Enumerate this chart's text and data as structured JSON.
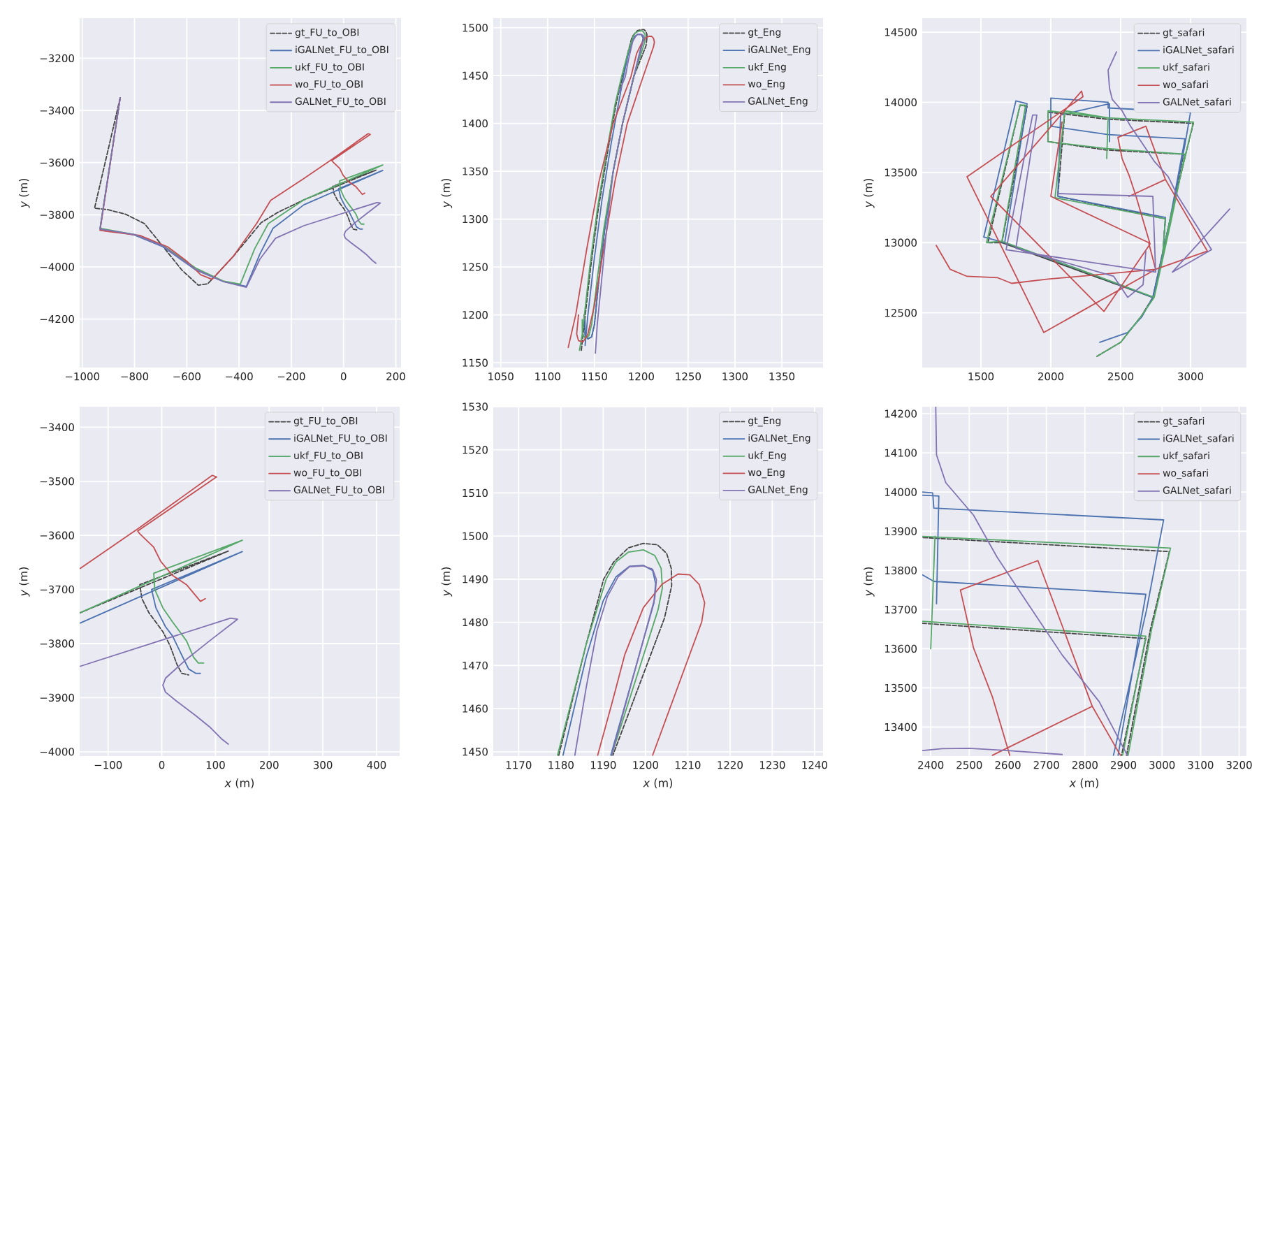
{
  "chart_data": [
    {
      "type": "line",
      "ylabel": "*y* (m)",
      "xlim": [
        -1010,
        220
      ],
      "ylim": [
        -4386,
        -3046
      ],
      "xticks": [
        {
          "value": -1000,
          "label": "−1000"
        },
        {
          "value": -800,
          "label": "−800"
        },
        {
          "value": -600,
          "label": "−600"
        },
        {
          "value": -400,
          "label": "−400"
        },
        {
          "value": -200,
          "label": "−200"
        },
        0,
        200
      ],
      "yticks": [
        {
          "value": -4200,
          "label": "−4200"
        },
        {
          "value": -4000,
          "label": "−4000"
        },
        {
          "value": -3800,
          "label": "−3800"
        },
        {
          "value": -3600,
          "label": "−3600"
        },
        {
          "value": -3400,
          "label": "−3400"
        },
        {
          "value": -3200,
          "label": "−3200"
        }
      ],
      "grid": true,
      "legend": "top right",
      "series": [
        {
          "name": "gt_FU_to_OBI",
          "color": "#444444",
          "line_style": "dashed",
          "x": [
            -855,
            -953,
            -905,
            -834,
            -762,
            -690,
            -619,
            -556,
            -520,
            -422,
            -315,
            -250,
            -152,
            124,
            -41,
            -37,
            -24,
            2,
            15,
            28,
            37,
            50
          ],
          "values": [
            -3352,
            -3775,
            -3780,
            -3798,
            -3834,
            -3923,
            -4012,
            -4070,
            -4065,
            -3960,
            -3830,
            -3790,
            -3743,
            -3629,
            -3691,
            -3717,
            -3743,
            -3778,
            -3803,
            -3838,
            -3855,
            -3858
          ]
        },
        {
          "name": "iGALNet_FU_to_OBI",
          "color": "#4c72b0",
          "line_style": "solid",
          "x": [
            -855,
            -932,
            -900,
            -800,
            -691,
            -565,
            -458,
            -372,
            -320,
            -270,
            -152,
            150,
            -19,
            -15,
            -11,
            7,
            20,
            37,
            50,
            63,
            72
          ],
          "values": [
            -3352,
            -3855,
            -3860,
            -3878,
            -3923,
            -4012,
            -4057,
            -4075,
            -3950,
            -3852,
            -3762,
            -3630,
            -3700,
            -3717,
            -3734,
            -3769,
            -3786,
            -3821,
            -3847,
            -3855,
            -3855
          ]
        },
        {
          "name": "ukf_FU_to_OBI",
          "color": "#55a868",
          "line_style": "solid",
          "x": [
            -855,
            -932,
            -900,
            -800,
            -691,
            -565,
            -458,
            -395,
            -340,
            -288,
            -152,
            150,
            -15,
            -13,
            2,
            20,
            46,
            59,
            68,
            78
          ],
          "values": [
            -3352,
            -3852,
            -3858,
            -3876,
            -3918,
            -4005,
            -4055,
            -4066,
            -3930,
            -3834,
            -3743,
            -3609,
            -3670,
            -3700,
            -3734,
            -3760,
            -3795,
            -3825,
            -3836,
            -3836
          ]
        },
        {
          "name": "wo_FU_to_OBI",
          "color": "#c44e52",
          "line_style": "solid",
          "x": [
            -855,
            -932,
            -905,
            -780,
            -673,
            -601,
            -547,
            -503,
            -422,
            -333,
            -279,
            -152,
            -45,
            94,
            102,
            -45,
            -41,
            -15,
            -2,
            20,
            46,
            72,
            81
          ],
          "values": [
            -3352,
            -3860,
            -3864,
            -3879,
            -3923,
            -3977,
            -4030,
            -4048,
            -3959,
            -3834,
            -3745,
            -3661,
            -3588,
            -3489,
            -3492,
            -3592,
            -3597,
            -3622,
            -3648,
            -3674,
            -3691,
            -3722,
            -3717
          ]
        },
        {
          "name": "GALNet_FU_to_OBI",
          "color": "#8172b2",
          "line_style": "solid",
          "x": [
            -855,
            -932,
            -900,
            -800,
            -691,
            -565,
            -458,
            -372,
            -320,
            -260,
            -152,
            128,
            141,
            89,
            46,
            7,
            2,
            7,
            28,
            63,
            89,
            111,
            124
          ],
          "values": [
            -3352,
            -3855,
            -3860,
            -3876,
            -3920,
            -4010,
            -4057,
            -4078,
            -3970,
            -3890,
            -3842,
            -3753,
            -3755,
            -3795,
            -3829,
            -3864,
            -3877,
            -3890,
            -3907,
            -3933,
            -3954,
            -3976,
            -3986
          ]
        }
      ]
    },
    {
      "type": "line",
      "ylabel": "*y* (m)",
      "xlim": [
        1042,
        1394
      ],
      "ylim": [
        1145,
        1510
      ],
      "xticks": [
        1050,
        1100,
        1150,
        1200,
        1250,
        1300,
        1350
      ],
      "yticks": [
        1150,
        1200,
        1250,
        1300,
        1350,
        1400,
        1450,
        1500
      ],
      "grid": true,
      "legend": "top right",
      "series": [
        {
          "name": "gt_Eng",
          "color": "#444444",
          "line_style": "dashed",
          "x": [
            1136,
            1139,
            1146,
            1154,
            1164,
            1173,
            1180,
            1186,
            1190,
            1193,
            1196,
            1200,
            1203,
            1205,
            1206,
            1206,
            1205,
            1192,
            1180,
            1170,
            1161,
            1154,
            1150,
            1147,
            1143,
            1140,
            1139
          ],
          "values": [
            1163,
            1190,
            1250,
            1310,
            1370,
            1420,
            1449,
            1475,
            1490,
            1494,
            1497,
            1498,
            1498,
            1496,
            1493,
            1489,
            1481,
            1449,
            1400,
            1350,
            1290,
            1230,
            1190,
            1177,
            1175,
            1180,
            1200
          ]
        },
        {
          "name": "iGALNet_Eng",
          "color": "#4c72b0",
          "line_style": "solid",
          "x": [
            1140,
            1143,
            1150,
            1158,
            1168,
            1181,
            1186,
            1190,
            1193,
            1196,
            1200,
            1202,
            1192,
            1180,
            1170,
            1161,
            1154,
            1150,
            1147,
            1143,
            1140,
            1140
          ],
          "values": [
            1168,
            1200,
            1260,
            1320,
            1380,
            1449,
            1472,
            1485,
            1491,
            1493,
            1493,
            1489,
            1449,
            1400,
            1350,
            1290,
            1230,
            1190,
            1177,
            1175,
            1178,
            1195
          ]
        },
        {
          "name": "ukf_Eng",
          "color": "#55a868",
          "line_style": "solid",
          "x": [
            1134,
            1137,
            1145,
            1153,
            1163,
            1172,
            1179,
            1186,
            1191,
            1193,
            1196,
            1200,
            1202,
            1204,
            1204,
            1203,
            1192,
            1180,
            1170,
            1160,
            1152,
            1147,
            1144,
            1140,
            1137,
            1137
          ],
          "values": [
            1163,
            1180,
            1250,
            1310,
            1370,
            1420,
            1449,
            1475,
            1490,
            1494,
            1496,
            1497,
            1496,
            1493,
            1488,
            1483,
            1449,
            1400,
            1350,
            1290,
            1230,
            1190,
            1178,
            1176,
            1180,
            1195
          ]
        },
        {
          "name": "wo_Eng",
          "color": "#c44e52",
          "line_style": "solid",
          "x": [
            1122,
            1130,
            1142,
            1155,
            1170,
            1189,
            1192,
            1195,
            1200,
            1204,
            1208,
            1211,
            1213,
            1214,
            1213,
            1202,
            1185,
            1172,
            1160,
            1150,
            1143,
            1138,
            1133,
            1131,
            1133
          ],
          "values": [
            1166,
            1200,
            1270,
            1340,
            1400,
            1449,
            1461,
            1473,
            1483,
            1489,
            1491,
            1491,
            1489,
            1485,
            1480,
            1449,
            1400,
            1340,
            1270,
            1210,
            1180,
            1172,
            1173,
            1180,
            1200
          ]
        },
        {
          "name": "GALNet_Eng",
          "color": "#8172b2",
          "line_style": "solid",
          "x": [
            1176,
            1183,
            1186,
            1189,
            1191,
            1194,
            1196,
            1200,
            1202,
            1203,
            1202,
            1192,
            1180,
            1170,
            1163,
            1157,
            1153,
            1151
          ],
          "values": [
            1432,
            1449,
            1465,
            1478,
            1486,
            1491,
            1493,
            1493,
            1492,
            1490,
            1486,
            1449,
            1400,
            1350,
            1290,
            1230,
            1190,
            1160
          ]
        }
      ]
    },
    {
      "type": "line",
      "ylabel": "*y* (m)",
      "xlim": [
        1080,
        3400
      ],
      "ylim": [
        12110,
        14600
      ],
      "xticks": [
        1500,
        2000,
        2500,
        3000
      ],
      "yticks": [
        12500,
        13000,
        13500,
        14000,
        14500
      ],
      "grid": true,
      "legend": "top right",
      "series": [
        {
          "name": "gt_safari",
          "color": "#444444",
          "line_style": "dashed",
          "x": [
            2330,
            2500,
            2650,
            2730,
            2850,
            2970,
            3020,
            2400,
            1980,
            1980,
            2400,
            2950,
            2850,
            2730,
            2200,
            1650,
            1550,
            1780,
            1830,
            1650,
            2200,
            2730,
            2800,
            2820,
            2050,
            2100
          ],
          "values": [
            12190,
            12290,
            12480,
            12610,
            13150,
            13650,
            13850,
            13880,
            13930,
            13720,
            13660,
            13630,
            13150,
            12610,
            12800,
            13000,
            13000,
            13980,
            13970,
            13000,
            12800,
            12610,
            12900,
            13170,
            13330,
            13930
          ]
        },
        {
          "name": "iGALNet_safari",
          "color": "#4c72b0",
          "line_style": "solid",
          "x": [
            2350,
            2550,
            2650,
            2730,
            2850,
            2960,
            3000,
            2410,
            2410,
            2000,
            2000,
            2410,
            2960,
            2850,
            2730,
            2200,
            1670,
            1520,
            1750,
            1830,
            1670,
            2200,
            2730,
            2800,
            2820,
            2050,
            2070,
            2420,
            2420
          ],
          "values": [
            12290,
            12360,
            12470,
            12610,
            13150,
            13700,
            13930,
            13960,
            14000,
            14030,
            13830,
            13770,
            13740,
            13150,
            12610,
            12810,
            13000,
            13040,
            14010,
            13990,
            13000,
            12810,
            12610,
            12900,
            13180,
            13330,
            13910,
            13990,
            13720
          ]
        },
        {
          "name": "ukf_safari",
          "color": "#55a868",
          "line_style": "solid",
          "x": [
            2330,
            2500,
            2650,
            2740,
            2850,
            2970,
            3020,
            2400,
            1980,
            1980,
            2400,
            2960,
            2860,
            2740,
            2200,
            1650,
            1540,
            1780,
            1820,
            1650,
            2200,
            2740,
            2800,
            2820,
            2030,
            2100,
            2410,
            2400
          ],
          "values": [
            12190,
            12290,
            12480,
            12610,
            13150,
            13650,
            13860,
            13890,
            13940,
            13720,
            13670,
            13630,
            13150,
            12610,
            12810,
            13010,
            13000,
            13980,
            13980,
            13010,
            12810,
            12610,
            12900,
            13170,
            13320,
            13940,
            13890,
            13600
          ]
        },
        {
          "name": "wo_safari",
          "color": "#c44e52",
          "line_style": "solid",
          "x": [
            1180,
            1280,
            1400,
            1620,
            1720,
            1980,
            2320,
            2750,
            3120,
            2820,
            2560,
            2820,
            2680,
            2480,
            2510,
            2560,
            2610,
            2710,
            2380,
            1570,
            2220,
            2230,
            1400,
            1950,
            2750,
            2700,
            2000,
            2080
          ],
          "values": [
            12980,
            12810,
            12760,
            12750,
            12710,
            12740,
            12770,
            12810,
            12940,
            13450,
            13330,
            13450,
            13830,
            13750,
            13600,
            13480,
            13330,
            12990,
            12510,
            13330,
            14080,
            14040,
            13470,
            12360,
            12810,
            13000,
            13330,
            13860
          ]
        },
        {
          "name": "GALNet_safari",
          "color": "#8172b2",
          "line_style": "solid",
          "x": [
            2470,
            2410,
            2420,
            2440,
            2510,
            2570,
            2640,
            2740,
            2840,
            2910,
            3050,
            3150,
            2870,
            3280,
            null,
            2050,
            2730,
            2750,
            1680,
            1870,
            1900,
            1750,
            2450,
            2550,
            2660,
            2680
          ],
          "values": [
            14360,
            14230,
            14100,
            14020,
            13940,
            13830,
            13730,
            13580,
            13470,
            13330,
            13110,
            12950,
            12790,
            13240,
            null,
            13350,
            13330,
            12790,
            12950,
            13910,
            13910,
            12960,
            12760,
            12610,
            12700,
            12940
          ]
        }
      ]
    },
    {
      "type": "line",
      "xlabel": "*x* (m)",
      "ylabel": "*y* (m)",
      "xlim": [
        -153,
        443
      ],
      "ylim": [
        -4008,
        -3362
      ],
      "xticks": [
        {
          "value": -100,
          "label": "−100"
        },
        0,
        100,
        200,
        300,
        400
      ],
      "yticks": [
        {
          "value": -4000,
          "label": "−4000"
        },
        {
          "value": -3900,
          "label": "−3900"
        },
        {
          "value": -3800,
          "label": "−3800"
        },
        {
          "value": -3700,
          "label": "−3700"
        },
        {
          "value": -3600,
          "label": "−3600"
        },
        {
          "value": -3500,
          "label": "−3500"
        },
        {
          "value": -3400,
          "label": "−3400"
        }
      ],
      "grid": true,
      "legend": "top right",
      "series": [
        {
          "name": "gt_FU_to_OBI",
          "color": "#444444",
          "line_style": "dashed",
          "x": [
            -152,
            124,
            -41,
            -37,
            -24,
            2,
            15,
            28,
            37,
            50
          ],
          "values": [
            -3743,
            -3629,
            -3691,
            -3717,
            -3743,
            -3778,
            -3803,
            -3838,
            -3855,
            -3858
          ]
        },
        {
          "name": "iGALNet_FU_to_OBI",
          "color": "#4c72b0",
          "line_style": "solid",
          "x": [
            -152,
            150,
            -19,
            -15,
            -11,
            7,
            20,
            37,
            50,
            63,
            72
          ],
          "values": [
            -3762,
            -3630,
            -3700,
            -3717,
            -3734,
            -3769,
            -3786,
            -3821,
            -3847,
            -3855,
            -3855
          ]
        },
        {
          "name": "ukf_FU_to_OBI",
          "color": "#55a868",
          "line_style": "solid",
          "x": [
            -152,
            150,
            -15,
            -13,
            2,
            20,
            46,
            59,
            68,
            78
          ],
          "values": [
            -3743,
            -3609,
            -3670,
            -3700,
            -3734,
            -3760,
            -3795,
            -3825,
            -3836,
            -3836
          ]
        },
        {
          "name": "wo_FU_to_OBI",
          "color": "#c44e52",
          "line_style": "solid",
          "x": [
            -152,
            -45,
            94,
            102,
            -45,
            -41,
            -15,
            -2,
            20,
            46,
            72,
            81
          ],
          "values": [
            -3661,
            -3588,
            -3489,
            -3492,
            -3592,
            -3597,
            -3622,
            -3648,
            -3674,
            -3691,
            -3722,
            -3717
          ]
        },
        {
          "name": "GALNet_FU_to_OBI",
          "color": "#8172b2",
          "line_style": "solid",
          "x": [
            -152,
            128,
            141,
            89,
            46,
            7,
            2,
            7,
            28,
            63,
            89,
            111,
            124
          ],
          "values": [
            -3842,
            -3753,
            -3755,
            -3795,
            -3829,
            -3864,
            -3877,
            -3890,
            -3907,
            -3933,
            -3954,
            -3976,
            -3986
          ]
        }
      ]
    },
    {
      "type": "line",
      "xlabel": "*x* (m)",
      "ylabel": "*y* (m)",
      "xlim": [
        1164,
        1242
      ],
      "ylim": [
        1449,
        1530
      ],
      "xticks": [
        1170,
        1180,
        1190,
        1200,
        1210,
        1220,
        1230,
        1240
      ],
      "yticks": [
        1450,
        1460,
        1470,
        1480,
        1490,
        1500,
        1510,
        1520,
        1530
      ],
      "grid": true,
      "legend": "top right",
      "series": [
        {
          "name": "gt_Eng",
          "color": "#444444",
          "line_style": "dashed",
          "x": [
            1179.5,
            1186,
            1190.1,
            1192.5,
            1196,
            1199.5,
            1202.8,
            1205,
            1206.1,
            1206.2,
            1204.5,
            1192.3
          ],
          "values": [
            1449.2,
            1475,
            1490,
            1494,
            1497.3,
            1498.3,
            1498,
            1496,
            1492.5,
            1488.5,
            1481,
            1449.2
          ]
        },
        {
          "name": "iGALNet_Eng",
          "color": "#4c72b0",
          "line_style": "solid",
          "x": [
            1180.5,
            1186,
            1190,
            1193,
            1196.2,
            1199.5,
            1201.7,
            1202.4,
            1202,
            1191.8
          ],
          "values": [
            1449.2,
            1472,
            1485,
            1490.5,
            1493,
            1493.2,
            1492,
            1489,
            1484.5,
            1449.2
          ]
        },
        {
          "name": "ukf_Eng",
          "color": "#55a868",
          "line_style": "solid",
          "x": [
            1179.2,
            1186,
            1190.7,
            1193,
            1196,
            1199.5,
            1202.2,
            1203.7,
            1204,
            1203,
            1192
          ],
          "values": [
            1449.2,
            1475,
            1490,
            1494,
            1496.3,
            1496.8,
            1495.5,
            1492.5,
            1488,
            1483,
            1449.2
          ]
        },
        {
          "name": "wo_Eng",
          "color": "#c44e52",
          "line_style": "solid",
          "x": [
            1188.7,
            1192,
            1195.1,
            1199.5,
            1203.9,
            1207.7,
            1210.5,
            1212.7,
            1214,
            1213.3,
            1201.7
          ],
          "values": [
            1449.2,
            1461,
            1472.5,
            1483.4,
            1488.8,
            1491.2,
            1491,
            1488.8,
            1484.5,
            1480.1,
            1449.2
          ]
        },
        {
          "name": "GALNet_Eng",
          "color": "#8172b2",
          "line_style": "solid",
          "x": [
            1183.3,
            1186,
            1188.5,
            1191,
            1193.5,
            1196.2,
            1199.5,
            1201.7,
            1202.6,
            1202.2,
            1192
          ],
          "values": [
            1449.2,
            1465,
            1478,
            1486,
            1490.5,
            1492.9,
            1493.1,
            1492.3,
            1489.9,
            1485.6,
            1449.2
          ]
        }
      ]
    },
    {
      "type": "line",
      "xlabel": "*x* (m)",
      "ylabel": "*y* (m)",
      "xlim": [
        2378,
        3219
      ],
      "ylim": [
        13326,
        14218
      ],
      "xticks": [
        2400,
        2500,
        2600,
        2700,
        2800,
        2900,
        3000,
        3100,
        3200
      ],
      "yticks": [
        13400,
        13500,
        13600,
        13700,
        13800,
        13900,
        14000,
        14100,
        14200
      ],
      "grid": true,
      "legend": "top right",
      "series": [
        {
          "name": "gt_safari",
          "color": "#444444",
          "line_style": "dashed",
          "x": [
            2908,
            2970,
            3019,
            2378,
            null,
            2378,
            2958,
            2895
          ],
          "values": [
            13328,
            13650,
            13848,
            13884,
            null,
            13665,
            13626,
            13328
          ]
        },
        {
          "name": "iGALNet_safari",
          "color": "#4c72b0",
          "line_style": "solid",
          "x": [
            2874,
            2960,
            3004,
            2408,
            2405,
            2378,
            null,
            2378,
            2408,
            2958,
            2886,
            null,
            2378,
            2421,
            2415
          ],
          "values": [
            13328,
            13700,
            13929,
            13959,
            13998,
            14000,
            null,
            13789,
            13772,
            13739,
            13328,
            null,
            13992,
            13990,
            13715
          ]
        },
        {
          "name": "ukf_safari",
          "color": "#55a868",
          "line_style": "solid",
          "x": [
            2912,
            2973,
            3022,
            2378,
            null,
            2378,
            2958,
            2898,
            null,
            2411,
            2400
          ],
          "values": [
            13328,
            13650,
            13857,
            13887,
            null,
            13670,
            13632,
            13328,
            null,
            13887,
            13600
          ]
        },
        {
          "name": "wo_safari",
          "color": "#c44e52",
          "line_style": "solid",
          "x": [
            2892,
            2819,
            2560,
            2819,
            2678,
            2477,
            2511,
            2560,
            2605
          ],
          "values": [
            13328,
            13453,
            13328,
            13453,
            13825,
            13750,
            13602,
            13477,
            13328
          ]
        },
        {
          "name": "GALNet_safari",
          "color": "#8172b2",
          "line_style": "solid",
          "x": [
            2413,
            2415,
            2439,
            2511,
            2572,
            2644,
            2741,
            2837,
            2910,
            null,
            2378,
            2430,
            2499,
            2600,
            2741
          ],
          "values": [
            14218,
            14095,
            14024,
            13941,
            13834,
            13727,
            13584,
            13465,
            13328,
            null,
            13340,
            13345,
            13346,
            13340,
            13330
          ]
        }
      ]
    }
  ]
}
